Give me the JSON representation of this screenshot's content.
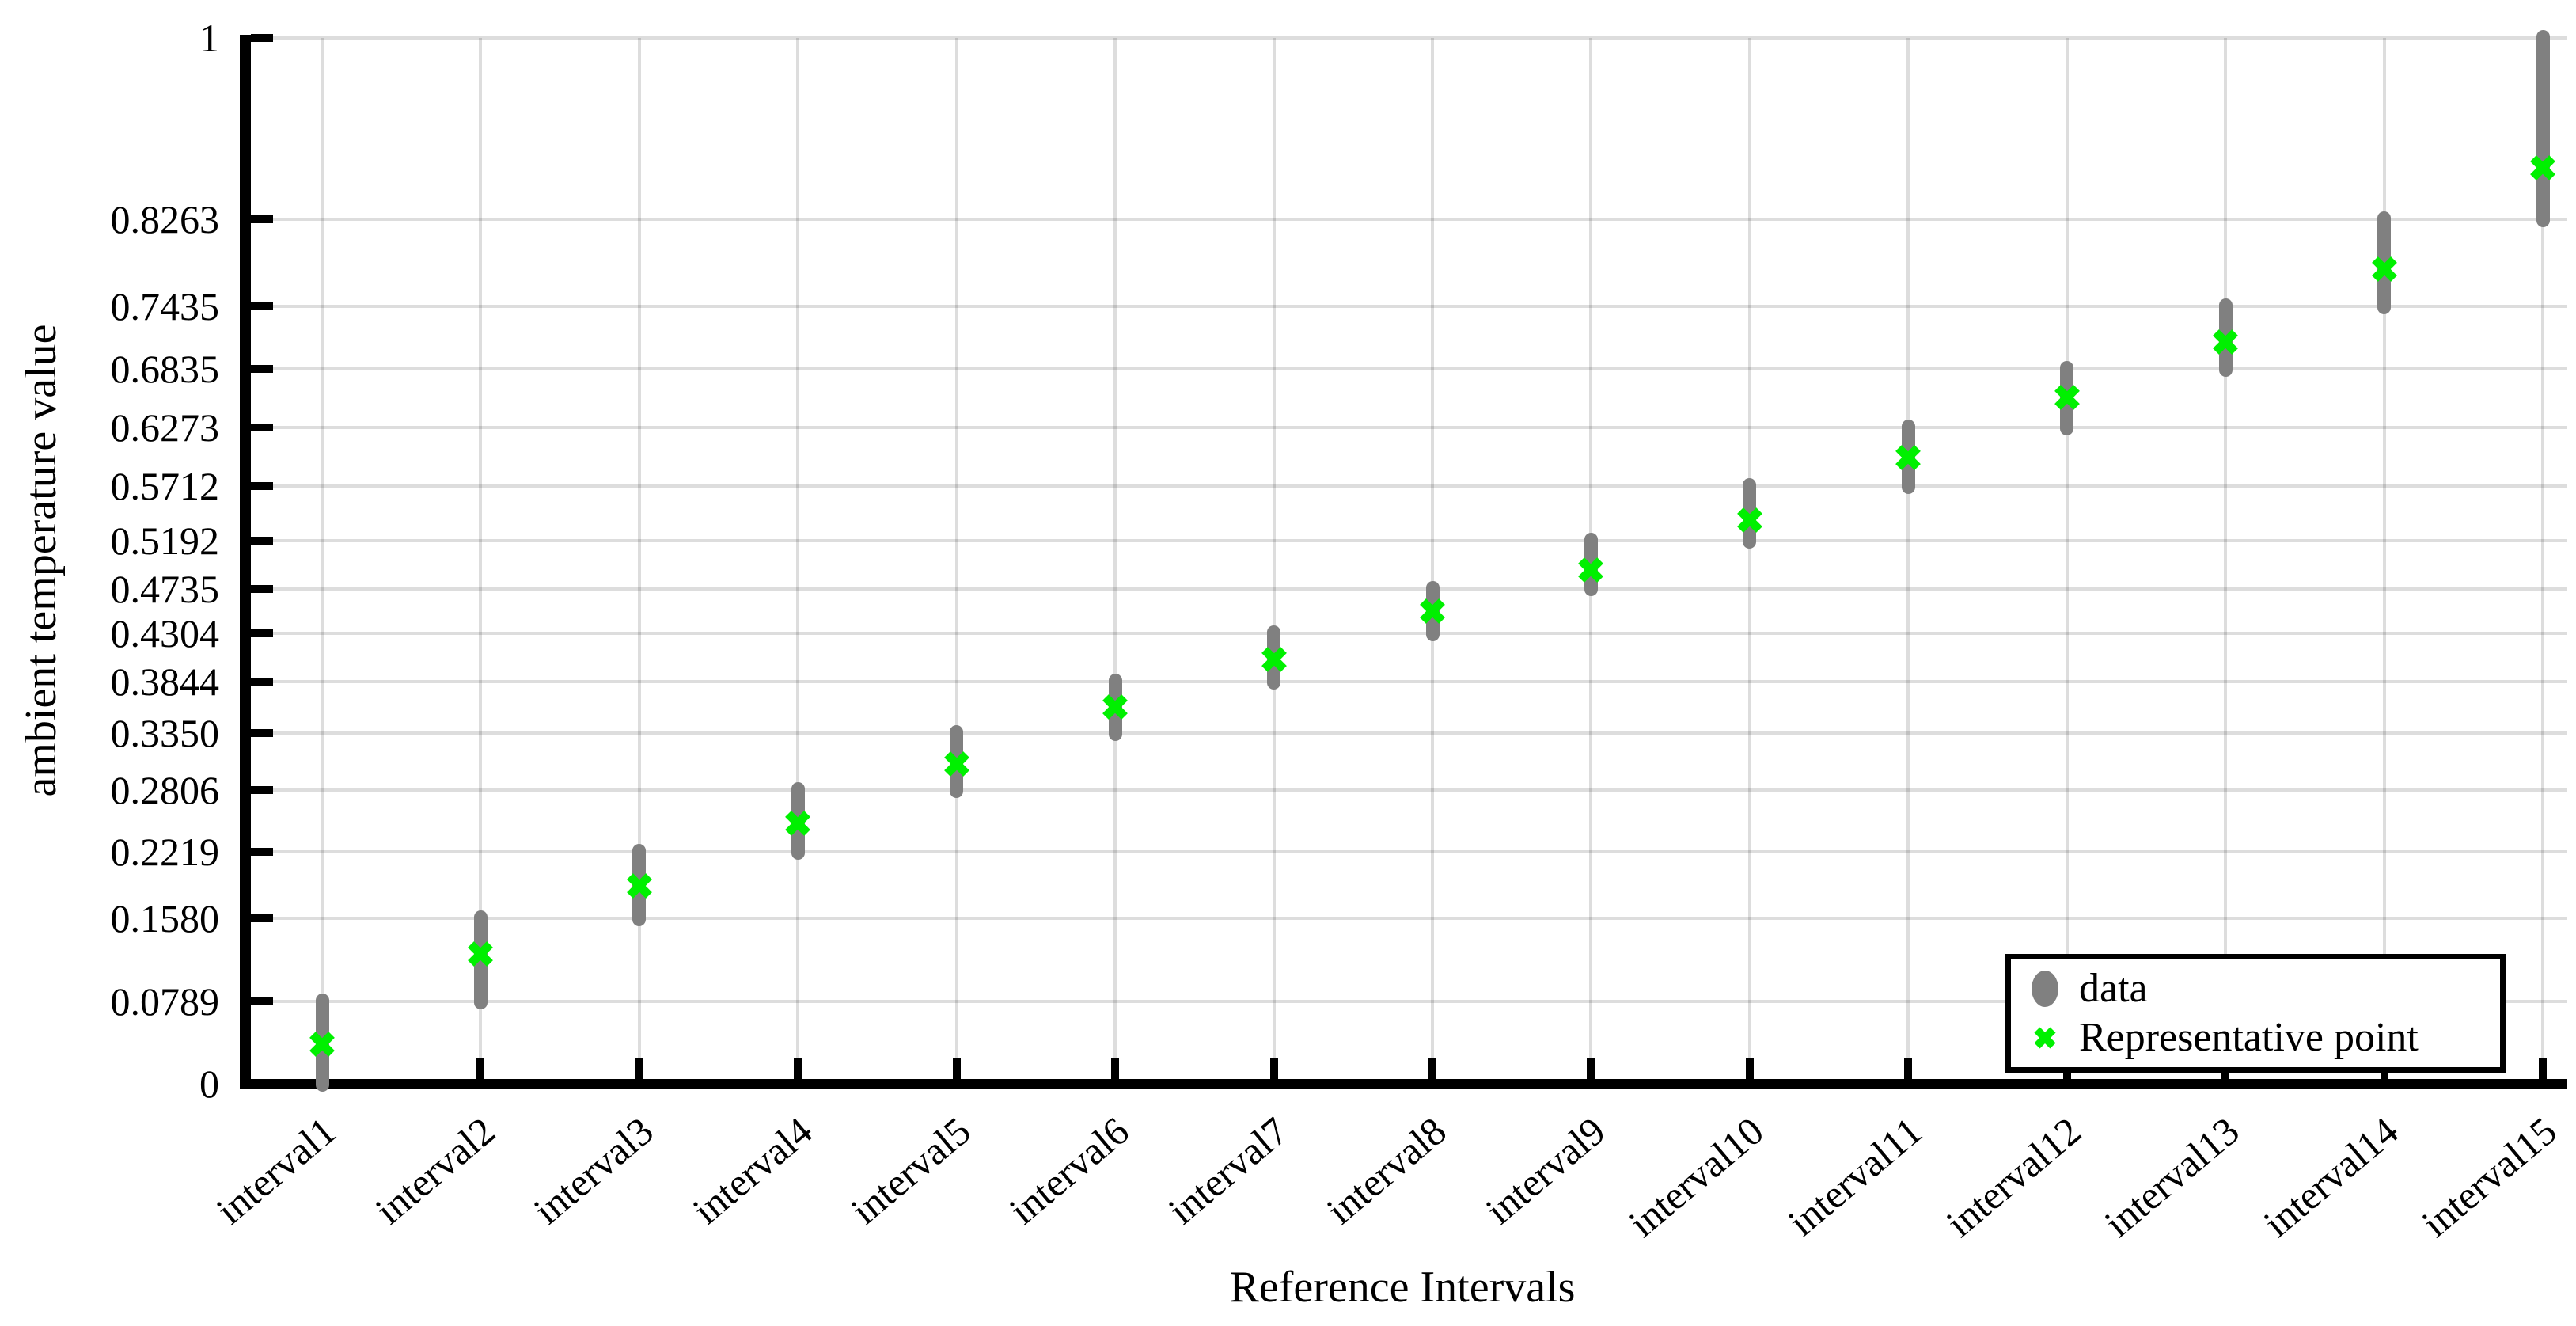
{
  "figure": {
    "background": "#ffffff",
    "xlabel": "Reference Intervals",
    "ylabel": "ambient temperature value"
  },
  "legend": {
    "position": "bottom-right",
    "border_color": "#000000",
    "items": [
      {
        "label": "data",
        "marker": "ellipse-icon",
        "color": "#808080"
      },
      {
        "label": "Representative point",
        "marker": "x-icon",
        "color": "#00f000"
      }
    ]
  },
  "colors": {
    "data_gray": "#808080",
    "representative_green": "#00f000",
    "grid": "rgba(0,0,0,0.135)",
    "axis": "#000000"
  },
  "chart_data": {
    "type": "scatter",
    "title": "",
    "xlabel": "Reference Intervals",
    "ylabel": "ambient temperature value",
    "ylim": [
      0,
      1
    ],
    "grid": true,
    "legend_position": "bottom-right",
    "categories": [
      "interval1",
      "interval2",
      "interval3",
      "interval4",
      "interval5",
      "interval6",
      "interval7",
      "interval8",
      "interval9",
      "interval10",
      "interval11",
      "interval12",
      "interval13",
      "interval14",
      "interval15"
    ],
    "y_tick_values": [
      0,
      0.0789,
      0.158,
      0.2219,
      0.2806,
      0.335,
      0.3844,
      0.4304,
      0.4735,
      0.5192,
      0.5712,
      0.6273,
      0.6835,
      0.7435,
      0.8263,
      1
    ],
    "y_tick_labels": [
      "0",
      "0.0789",
      "0.1580",
      "0.2219",
      "0.2806",
      "0.3350",
      "0.3844",
      "0.4304",
      "0.4735",
      "0.5192",
      "0.5712",
      "0.6273",
      "0.6835",
      "0.7435",
      "0.8263",
      "1"
    ],
    "series": [
      {
        "name": "data",
        "marker": "circle",
        "color": "#808080",
        "note": "vertical cluster of data points spanning each reference interval",
        "ranges": [
          [
            0,
            0.0789
          ],
          [
            0.0789,
            0.158
          ],
          [
            0.158,
            0.2219
          ],
          [
            0.2219,
            0.2806
          ],
          [
            0.2806,
            0.335
          ],
          [
            0.335,
            0.3844
          ],
          [
            0.3844,
            0.4304
          ],
          [
            0.4304,
            0.4735
          ],
          [
            0.4735,
            0.5192
          ],
          [
            0.5192,
            0.5712
          ],
          [
            0.5712,
            0.6273
          ],
          [
            0.6273,
            0.6835
          ],
          [
            0.6835,
            0.7435
          ],
          [
            0.7435,
            0.8263
          ],
          [
            0.8263,
            1.0
          ]
        ]
      },
      {
        "name": "Representative point",
        "marker": "x",
        "color": "#00f000",
        "values": [
          0.038,
          0.124,
          0.189,
          0.249,
          0.306,
          0.36,
          0.406,
          0.452,
          0.491,
          0.539,
          0.599,
          0.656,
          0.709,
          0.779,
          0.876
        ]
      }
    ]
  }
}
